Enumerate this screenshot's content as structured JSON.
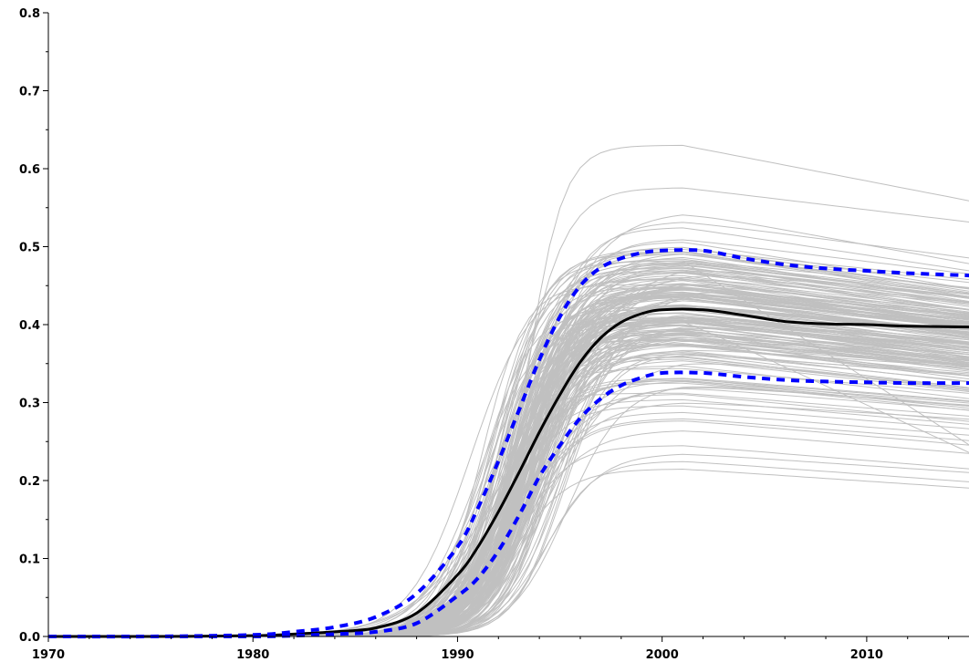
{
  "chart_data": {
    "type": "line",
    "title": "",
    "xlabel": "",
    "ylabel": "",
    "xlim": [
      1970,
      2015
    ],
    "ylim": [
      0,
      0.8
    ],
    "grid": false,
    "x_ticks": [
      1970,
      1980,
      1990,
      2000,
      2010
    ],
    "x_tick_labels": [
      "1970",
      "1980",
      "1990",
      "2000",
      "2010"
    ],
    "y_ticks": [
      0.0,
      0.1,
      0.2,
      0.3,
      0.4,
      0.5,
      0.6,
      0.7,
      0.8
    ],
    "y_tick_labels": [
      "0.0",
      "0.1",
      "0.2",
      "0.3",
      "0.4",
      "0.5",
      "0.6",
      "0.7",
      "0.8"
    ],
    "x": [
      1970,
      1975,
      1980,
      1982,
      1984,
      1986,
      1988,
      1990,
      1991,
      1992,
      1993,
      1994,
      1995,
      1996,
      1997,
      1998,
      1999,
      2000,
      2002,
      2004,
      2006,
      2008,
      2010,
      2012,
      2015
    ],
    "series": [
      {
        "role": "simulations",
        "color": "#c0c0c0",
        "count": 200,
        "values_note": "grey ensemble band",
        "peak_min": 0.2,
        "peak_max": 0.63
      },
      {
        "role": "median",
        "color": "#000000",
        "values": [
          0.0,
          0.0,
          0.001,
          0.003,
          0.006,
          0.011,
          0.03,
          0.079,
          0.115,
          0.16,
          0.21,
          0.262,
          0.31,
          0.352,
          0.383,
          0.403,
          0.414,
          0.419,
          0.419,
          0.412,
          0.404,
          0.401,
          0.4,
          0.398,
          0.397
        ]
      },
      {
        "role": "upper-bound",
        "color": "#0000ff",
        "values": [
          0.0,
          0.0,
          0.002,
          0.006,
          0.012,
          0.025,
          0.055,
          0.115,
          0.165,
          0.225,
          0.29,
          0.355,
          0.41,
          0.45,
          0.473,
          0.485,
          0.492,
          0.495,
          0.495,
          0.485,
          0.477,
          0.472,
          0.469,
          0.466,
          0.463
        ]
      },
      {
        "role": "lower-bound",
        "color": "#0000ff",
        "values": [
          0.0,
          0.0,
          0.0,
          0.001,
          0.003,
          0.006,
          0.017,
          0.052,
          0.075,
          0.11,
          0.155,
          0.205,
          0.245,
          0.28,
          0.305,
          0.322,
          0.332,
          0.338,
          0.338,
          0.333,
          0.329,
          0.327,
          0.326,
          0.325,
          0.325
        ]
      }
    ]
  }
}
